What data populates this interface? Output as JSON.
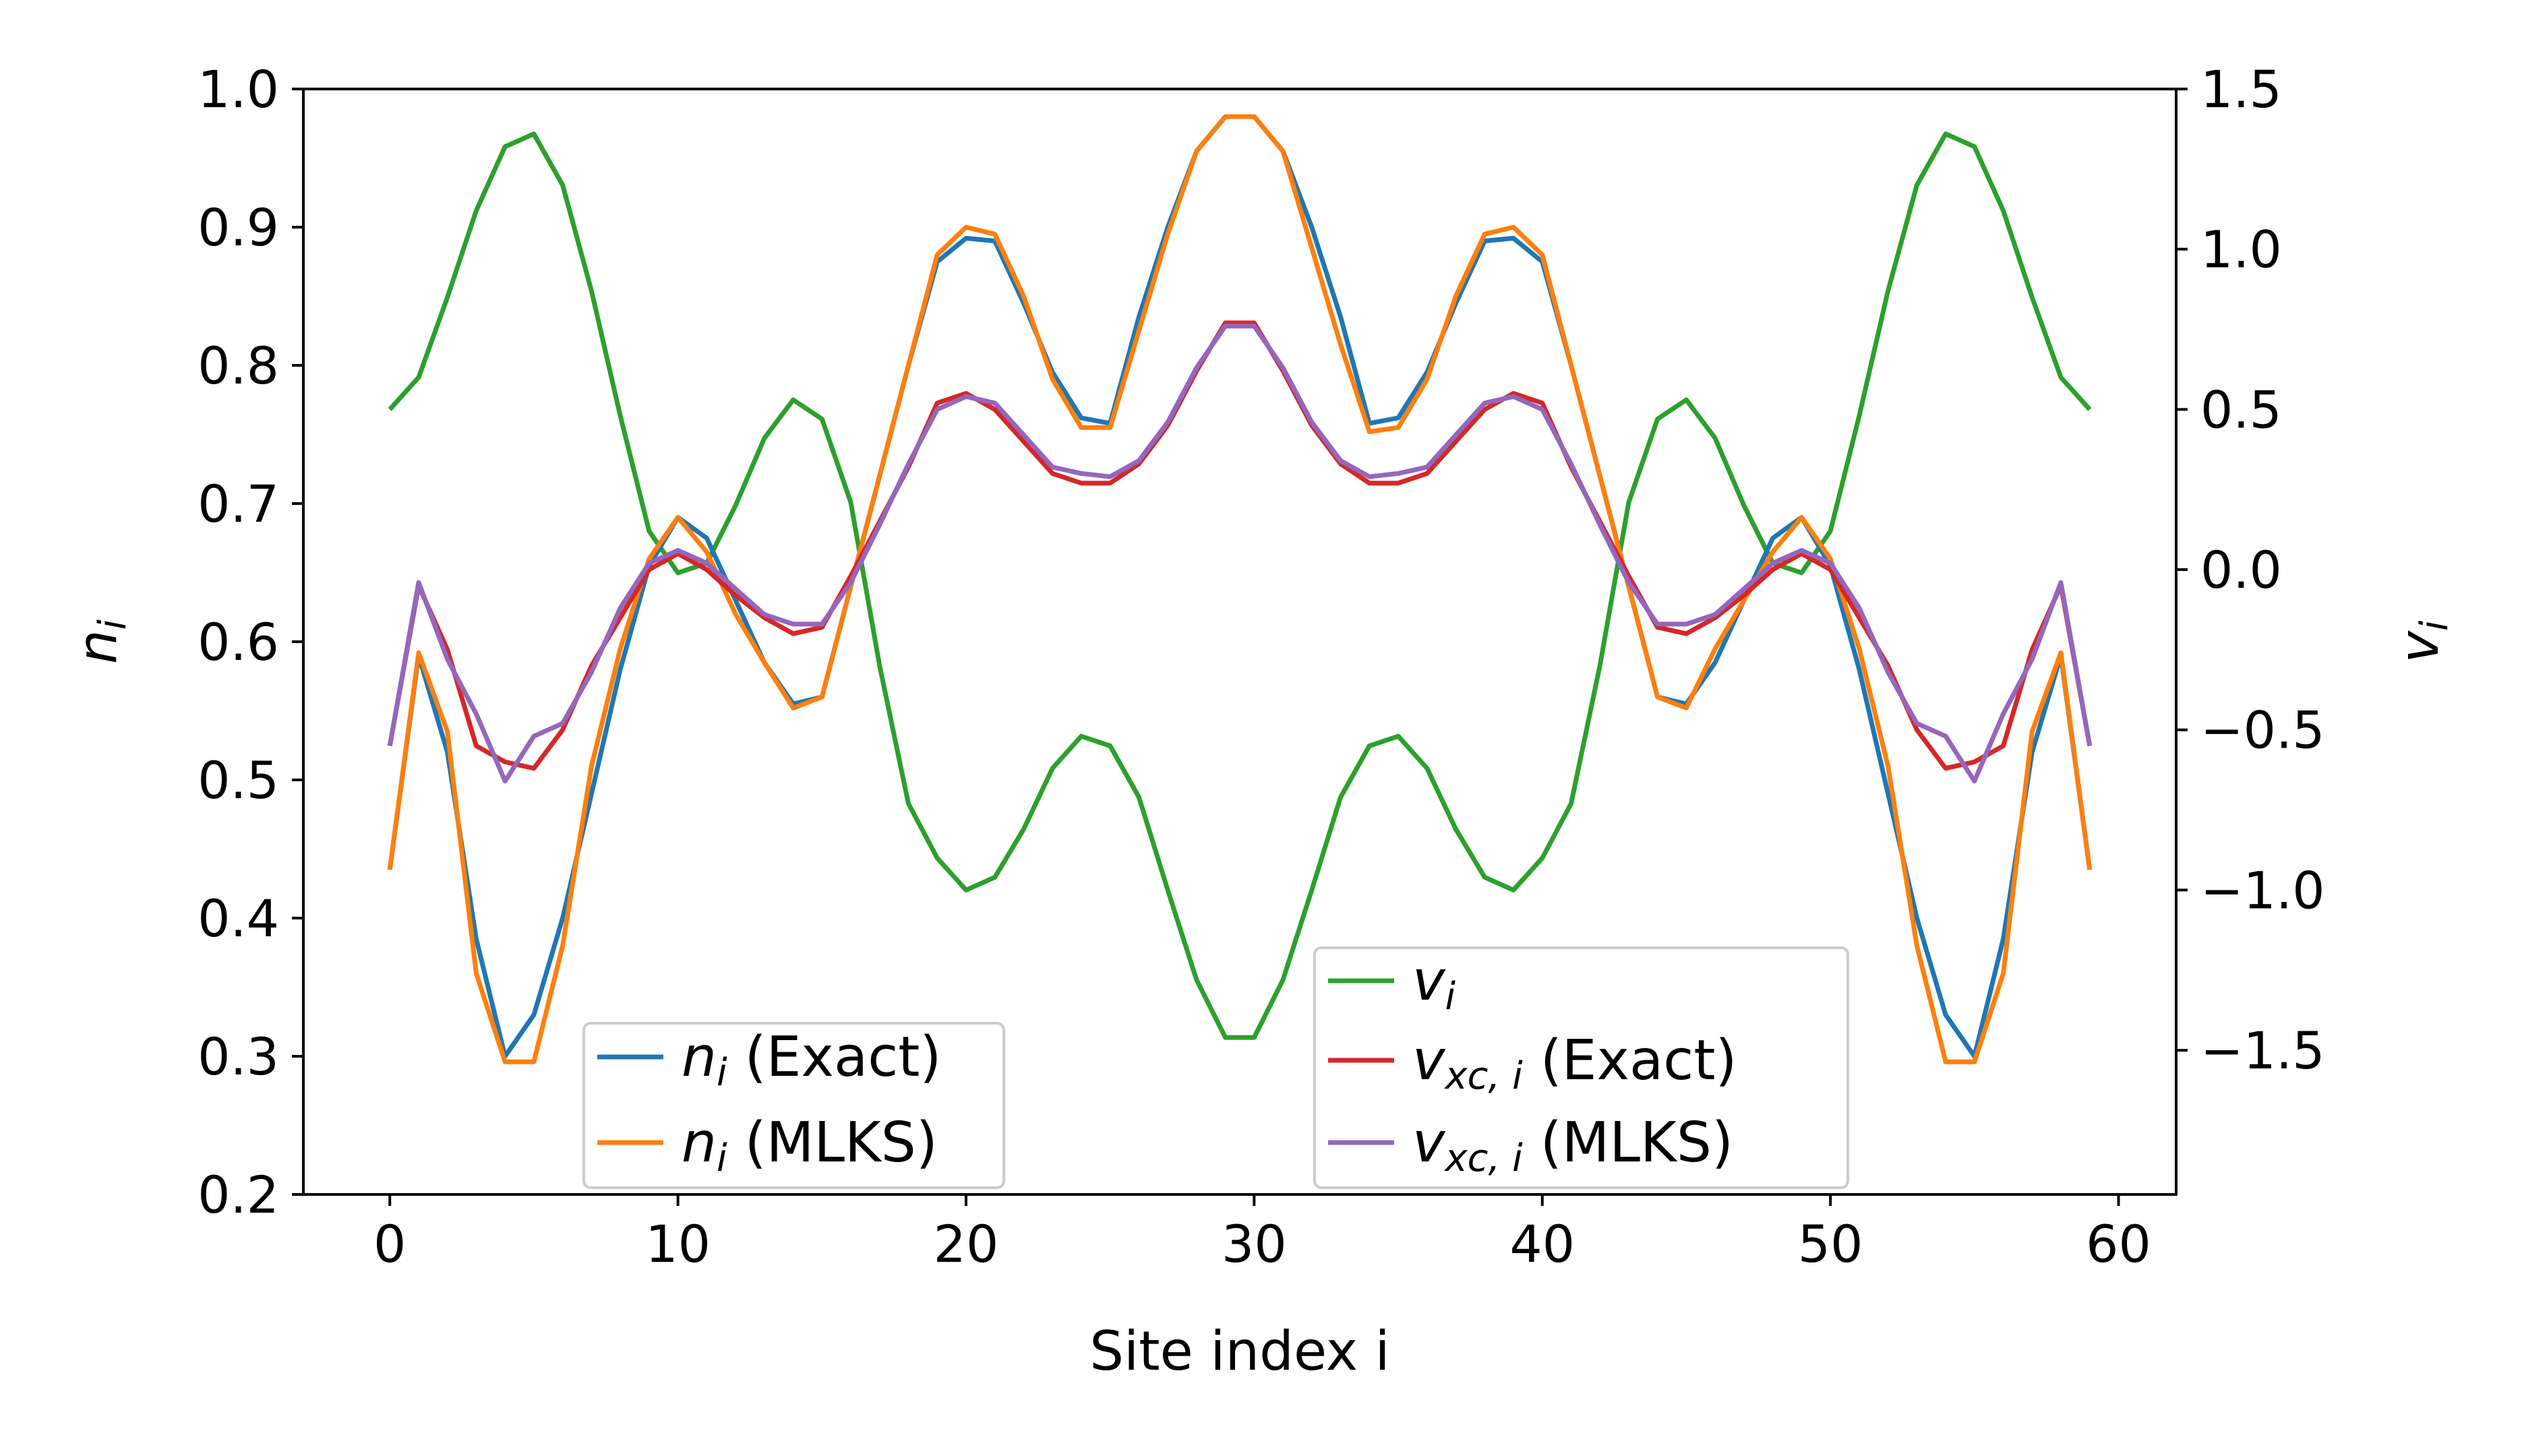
{
  "chart_data": {
    "type": "line",
    "xlabel": "Site index i",
    "ylabel_left": "n",
    "ylabel_left_sub": "i",
    "ylabel_right": "v",
    "ylabel_right_sub": "i",
    "xlim": [
      -3,
      62
    ],
    "ylim_left": [
      0.2,
      1.0
    ],
    "ylim_right": [
      -1.95,
      1.5
    ],
    "xticks": [
      0,
      10,
      20,
      30,
      40,
      50,
      60
    ],
    "yticks_left": [
      0.2,
      0.3,
      0.4,
      0.5,
      0.6,
      0.7,
      0.8,
      0.9,
      1.0
    ],
    "yticks_left_labels": [
      "0.2",
      "0.3",
      "0.4",
      "0.5",
      "0.6",
      "0.7",
      "0.8",
      "0.9",
      "1.0"
    ],
    "yticks_right": [
      -1.5,
      -1.0,
      -0.5,
      0.0,
      0.5,
      1.0,
      1.5
    ],
    "yticks_right_labels": [
      "−1.5",
      "−1.0",
      "−0.5",
      "0.0",
      "0.5",
      "1.0",
      "1.5"
    ],
    "x": [
      0,
      1,
      2,
      3,
      4,
      5,
      6,
      7,
      8,
      9,
      10,
      11,
      12,
      13,
      14,
      15,
      16,
      17,
      18,
      19,
      20,
      21,
      22,
      23,
      24,
      25,
      26,
      27,
      28,
      29,
      30,
      31,
      32,
      33,
      34,
      35,
      36,
      37,
      38,
      39,
      40,
      41,
      42,
      43,
      44,
      45,
      46,
      47,
      48,
      49,
      50,
      51,
      52,
      53,
      54,
      55,
      56,
      57,
      58,
      59
    ],
    "series": [
      {
        "name": "n_i (Exact)",
        "label_main": "n",
        "label_sub": "i",
        "label_rest": " (Exact)",
        "axis": "left",
        "color": "#1f77b4",
        "legend": 1,
        "values": [
          0.435,
          0.59,
          0.52,
          0.385,
          0.3,
          0.33,
          0.4,
          0.49,
          0.58,
          0.655,
          0.69,
          0.675,
          0.63,
          0.585,
          0.555,
          0.56,
          0.64,
          0.72,
          0.8,
          0.875,
          0.892,
          0.89,
          0.845,
          0.795,
          0.762,
          0.758,
          0.835,
          0.9,
          0.955,
          0.98,
          0.98,
          0.955,
          0.9,
          0.835,
          0.758,
          0.762,
          0.795,
          0.845,
          0.89,
          0.892,
          0.875,
          0.8,
          0.72,
          0.64,
          0.56,
          0.555,
          0.585,
          0.63,
          0.675,
          0.69,
          0.655,
          0.58,
          0.49,
          0.4,
          0.33,
          0.3,
          0.385,
          0.52,
          0.59,
          0.435
        ]
      },
      {
        "name": "n_i (MLKS)",
        "label_main": "n",
        "label_sub": "i",
        "label_rest": " (MLKS)",
        "axis": "left",
        "color": "#ff7f0e",
        "legend": 1,
        "values": [
          0.435,
          0.592,
          0.535,
          0.36,
          0.296,
          0.296,
          0.38,
          0.51,
          0.595,
          0.66,
          0.69,
          0.665,
          0.62,
          0.585,
          0.552,
          0.56,
          0.64,
          0.72,
          0.8,
          0.88,
          0.9,
          0.895,
          0.85,
          0.79,
          0.755,
          0.755,
          0.825,
          0.895,
          0.955,
          0.98,
          0.98,
          0.955,
          0.885,
          0.815,
          0.752,
          0.755,
          0.79,
          0.85,
          0.895,
          0.9,
          0.88,
          0.8,
          0.72,
          0.64,
          0.56,
          0.552,
          0.595,
          0.63,
          0.665,
          0.69,
          0.66,
          0.595,
          0.51,
          0.38,
          0.296,
          0.296,
          0.36,
          0.535,
          0.592,
          0.435
        ]
      },
      {
        "name": "v_i",
        "label_main": "v",
        "label_sub": "i",
        "label_rest": "",
        "axis": "right",
        "color": "#2ca02c",
        "legend": 2,
        "values": [
          0.5,
          0.6,
          0.85,
          1.12,
          1.32,
          1.36,
          1.2,
          0.87,
          0.48,
          0.12,
          -0.01,
          0.02,
          0.2,
          0.41,
          0.53,
          0.47,
          0.21,
          -0.3,
          -0.73,
          -0.9,
          -1.0,
          -0.96,
          -0.81,
          -0.62,
          -0.52,
          -0.55,
          -0.71,
          -1.0,
          -1.28,
          -1.46,
          -1.46,
          -1.28,
          -1.0,
          -0.71,
          -0.55,
          -0.52,
          -0.62,
          -0.81,
          -0.96,
          -1.0,
          -0.9,
          -0.73,
          -0.3,
          0.21,
          0.47,
          0.53,
          0.41,
          0.2,
          0.02,
          -0.01,
          0.12,
          0.48,
          0.87,
          1.2,
          1.36,
          1.32,
          1.12,
          0.85,
          0.6,
          0.5
        ]
      },
      {
        "name": "v_xc,i (Exact)",
        "label_main": "v",
        "label_sub": "xc, i",
        "label_rest": " (Exact)",
        "axis": "right",
        "color": "#d62728",
        "legend": 2,
        "values": [
          -0.55,
          -0.05,
          -0.25,
          -0.55,
          -0.6,
          -0.62,
          -0.5,
          -0.3,
          -0.15,
          0.0,
          0.05,
          0.0,
          -0.08,
          -0.15,
          -0.2,
          -0.18,
          -0.02,
          0.15,
          0.32,
          0.52,
          0.55,
          0.5,
          0.4,
          0.3,
          0.27,
          0.27,
          0.33,
          0.45,
          0.62,
          0.77,
          0.77,
          0.62,
          0.45,
          0.33,
          0.27,
          0.27,
          0.3,
          0.4,
          0.5,
          0.55,
          0.52,
          0.32,
          0.15,
          -0.02,
          -0.18,
          -0.2,
          -0.15,
          -0.08,
          0.0,
          0.05,
          0.0,
          -0.15,
          -0.3,
          -0.5,
          -0.62,
          -0.6,
          -0.55,
          -0.25,
          -0.05,
          -0.55
        ]
      },
      {
        "name": "v_xc,i (MLKS)",
        "label_main": "v",
        "label_sub": "xc, i",
        "label_rest": " (MLKS)",
        "axis": "right",
        "color": "#9467bd",
        "legend": 2,
        "values": [
          -0.55,
          -0.04,
          -0.28,
          -0.45,
          -0.66,
          -0.52,
          -0.48,
          -0.32,
          -0.12,
          0.02,
          0.06,
          0.02,
          -0.06,
          -0.14,
          -0.17,
          -0.17,
          -0.04,
          0.14,
          0.33,
          0.5,
          0.54,
          0.52,
          0.42,
          0.32,
          0.3,
          0.29,
          0.34,
          0.46,
          0.63,
          0.76,
          0.76,
          0.63,
          0.46,
          0.34,
          0.29,
          0.3,
          0.32,
          0.42,
          0.52,
          0.54,
          0.5,
          0.33,
          0.14,
          -0.04,
          -0.17,
          -0.17,
          -0.14,
          -0.06,
          0.02,
          0.06,
          0.02,
          -0.12,
          -0.32,
          -0.48,
          -0.52,
          -0.66,
          -0.45,
          -0.28,
          -0.04,
          -0.55
        ]
      }
    ]
  }
}
